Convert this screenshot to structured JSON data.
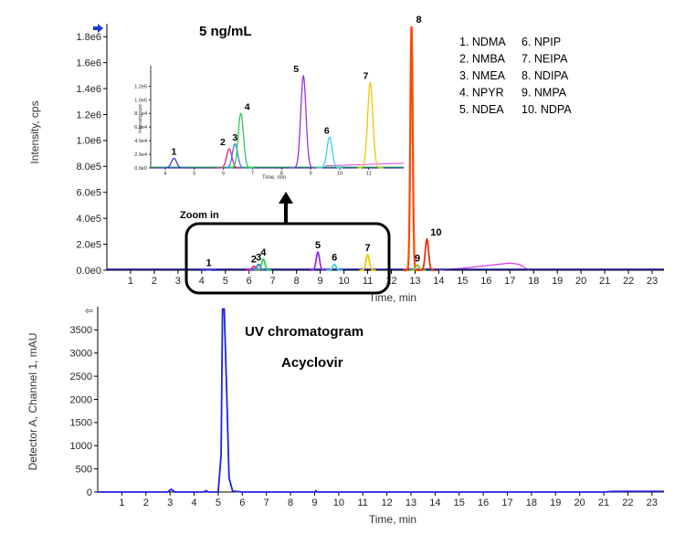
{
  "chart_data": [
    {
      "type": "line",
      "title": "5 ng/mL",
      "xlabel": "Time, min",
      "ylabel": "Intensity, cps",
      "xlim": [
        0,
        23.5
      ],
      "ylim": [
        0,
        1900000
      ],
      "x_ticks": [
        "1",
        "2",
        "3",
        "4",
        "5",
        "6",
        "7",
        "8",
        "9",
        "10",
        "11",
        "12",
        "13",
        "14",
        "15",
        "16",
        "17",
        "18",
        "19",
        "20",
        "21",
        "22",
        "23"
      ],
      "y_ticks": [
        "0.0e0",
        "2.0e5",
        "4.0e5",
        "6.0e5",
        "8.0e5",
        "1.0e6",
        "1.2e6",
        "1.4e6",
        "1.6e6",
        "1.8e6"
      ],
      "legend": [
        "1. NDMA",
        "2. NMBA",
        "3. NMEA",
        "4. NPYR",
        "5. NDEA",
        "6. NPIP",
        "7. NEIPA",
        "8. NDIPA",
        "9. NMPA",
        "10. NDPA"
      ],
      "series": [
        {
          "name": "1. NDMA",
          "color": "#3a3ad0",
          "peak": {
            "label": "1",
            "x": 4.3,
            "y": 5000
          }
        },
        {
          "name": "2. NMBA",
          "color": "#e0208a",
          "peak": {
            "label": "2",
            "x": 6.2,
            "y": 30000
          }
        },
        {
          "name": "3. NMEA",
          "color": "#3a7bd5",
          "peak": {
            "label": "3",
            "x": 6.4,
            "y": 45000
          }
        },
        {
          "name": "4. NPYR",
          "color": "#34c759",
          "peak": {
            "label": "4",
            "x": 6.6,
            "y": 85000
          }
        },
        {
          "name": "5. NDEA",
          "color": "#9b30e0",
          "peak": {
            "label": "5",
            "x": 8.9,
            "y": 140000
          }
        },
        {
          "name": "6. NPIP",
          "color": "#40d0e0",
          "peak": {
            "label": "6",
            "x": 9.6,
            "y": 45000
          }
        },
        {
          "name": "7. NEIPA",
          "color": "#f0c800",
          "peak": {
            "label": "7",
            "x": 11.0,
            "y": 120000
          }
        },
        {
          "name": "8. NDIPA",
          "color": "#ff4800",
          "peak": {
            "label": "8",
            "x": 12.85,
            "y": 1880000
          }
        },
        {
          "name": "9. NMPA",
          "color": "#80c040",
          "peak": {
            "label": "9",
            "x": 13.1,
            "y": 40000
          }
        },
        {
          "name": "10. NDPA",
          "color": "#e83010",
          "peak": {
            "label": "10",
            "x": 13.5,
            "y": 240000
          }
        }
      ],
      "baseline_drift": {
        "color": "#e040e0",
        "x": [
          14,
          15,
          16,
          17,
          17.4,
          17.8
        ],
        "y": [
          0,
          15000,
          35000,
          55000,
          45000,
          0
        ]
      },
      "annotation": "Zoom in"
    },
    {
      "type": "line",
      "title": "",
      "xlabel": "Time, min",
      "ylabel": "Intensity, cps",
      "xlim": [
        3.5,
        12.2
      ],
      "ylim": [
        0,
        150000
      ],
      "x_ticks": [
        "4",
        "5",
        "6",
        "7",
        "8",
        "9",
        "10",
        "11"
      ],
      "y_ticks": [
        "0.0e0",
        "2.0e4",
        "4.0e4",
        "6.0e4",
        "8.0e4",
        "1.0e5",
        "1.2e5"
      ],
      "peaks": [
        {
          "label": "1",
          "x": 4.3,
          "y": 14000,
          "color": "#3a3ad0"
        },
        {
          "label": "2",
          "x": 6.2,
          "y": 28000,
          "color": "#e0208a"
        },
        {
          "label": "3",
          "x": 6.4,
          "y": 35000,
          "color": "#3a7bd5"
        },
        {
          "label": "4",
          "x": 6.6,
          "y": 80000,
          "color": "#34c759"
        },
        {
          "label": "5",
          "x": 8.75,
          "y": 135000,
          "color": "#9b30e0"
        },
        {
          "label": "6",
          "x": 9.65,
          "y": 45000,
          "color": "#40d0e0"
        },
        {
          "label": "7",
          "x": 11.05,
          "y": 125000,
          "color": "#f0c800"
        }
      ]
    },
    {
      "type": "line",
      "title": "UV chromatogram",
      "subtitle": "Acyclovir",
      "xlabel": "Time, min",
      "ylabel": "Detector A, Channel 1, mAU",
      "xlim": [
        0,
        23.5
      ],
      "ylim": [
        0,
        4000
      ],
      "x_ticks": [
        "1",
        "2",
        "3",
        "4",
        "5",
        "6",
        "7",
        "8",
        "9",
        "10",
        "11",
        "12",
        "13",
        "14",
        "15",
        "16",
        "17",
        "18",
        "19",
        "20",
        "21",
        "22",
        "23"
      ],
      "y_ticks": [
        "0",
        "500",
        "1000",
        "1500",
        "2000",
        "2500",
        "3000",
        "3500"
      ],
      "series": [
        {
          "name": "Acyclovir",
          "color": "#2222dd",
          "x": [
            0,
            2.9,
            3.05,
            3.2,
            4.4,
            4.5,
            4.6,
            5.0,
            5.12,
            5.18,
            5.25,
            5.35,
            5.45,
            5.6,
            6,
            9.0,
            9.05,
            9.1,
            13,
            15,
            21,
            21.4,
            23.5
          ],
          "y": [
            0,
            0,
            60,
            0,
            0,
            30,
            0,
            0,
            800,
            3950,
            3950,
            2200,
            300,
            20,
            0,
            0,
            25,
            0,
            0,
            0,
            0,
            15,
            15
          ]
        }
      ]
    }
  ],
  "colors": {
    "axis": "#000000",
    "baseline": "#1a1aa0",
    "arrow": "#1a3ad0"
  }
}
